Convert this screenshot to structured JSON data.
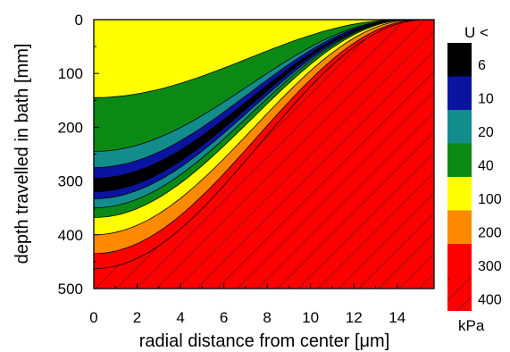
{
  "chart_data": {
    "type": "area",
    "xlabel": "radial distance from center [μm]",
    "ylabel": "depth travelled in bath [mm]",
    "xlim": [
      0,
      15.7
    ],
    "ylim": [
      0,
      500
    ],
    "y_inverted": true,
    "x_ticks": [
      "0",
      "2",
      "4",
      "6",
      "8",
      "10",
      "12",
      "14"
    ],
    "y_ticks": [
      "0",
      "100",
      "200",
      "300",
      "400",
      "500"
    ],
    "legend": {
      "title": "U <",
      "unit": "kPa",
      "placement": "right",
      "entries": [
        {
          "label": "6",
          "color": "#000000"
        },
        {
          "label": "10",
          "color": "#0a14a0"
        },
        {
          "label": "20",
          "color": "#138c8c"
        },
        {
          "label": "40",
          "color": "#0a8a14"
        },
        {
          "label": "100",
          "color": "#ffff00"
        },
        {
          "label": "200",
          "color": "#ff8a00"
        },
        {
          "label": "300",
          "color": "#ff0000"
        },
        {
          "label": "400",
          "color": "#ff0000",
          "hatched": true
        }
      ]
    },
    "contours": [
      {
        "name": "100",
        "y_at_x0": 145,
        "y_end_x": 14.2
      },
      {
        "name": "40",
        "y_at_x0": 245,
        "y_end_x": 14.3
      },
      {
        "name": "20",
        "y_at_x0": 275,
        "y_end_x": 14.3
      },
      {
        "name": "10",
        "y_at_x0": 295,
        "y_end_x": 14.4
      },
      {
        "name": "6",
        "y_at_x0": 320,
        "y_end_x": 14.4
      },
      {
        "name": "10",
        "y_at_x0": 333,
        "y_end_x": 14.5
      },
      {
        "name": "20",
        "y_at_x0": 350,
        "y_end_x": 14.5
      },
      {
        "name": "40",
        "y_at_x0": 368,
        "y_end_x": 14.6
      },
      {
        "name": "100",
        "y_at_x0": 400,
        "y_end_x": 14.8
      },
      {
        "name": "200",
        "y_at_x0": 435,
        "y_end_x": 15.1
      },
      {
        "name": "300",
        "y_at_x0": 463,
        "y_end_x": 15.3
      }
    ],
    "bands": [
      {
        "label": "100",
        "color": "#ffff00"
      },
      {
        "label": "40",
        "color": "#0a8a14"
      },
      {
        "label": "20",
        "color": "#138c8c"
      },
      {
        "label": "10",
        "color": "#0a14a0"
      },
      {
        "label": "6",
        "color": "#000000"
      },
      {
        "label": "10",
        "color": "#0a14a0"
      },
      {
        "label": "20",
        "color": "#138c8c"
      },
      {
        "label": "40",
        "color": "#0a8a14"
      },
      {
        "label": "100",
        "color": "#ffff00"
      },
      {
        "label": "200",
        "color": "#ff8a00"
      },
      {
        "label": "300",
        "color": "#ff0000"
      },
      {
        "label": "400",
        "color": "#ff0000",
        "hatched": true
      }
    ]
  }
}
